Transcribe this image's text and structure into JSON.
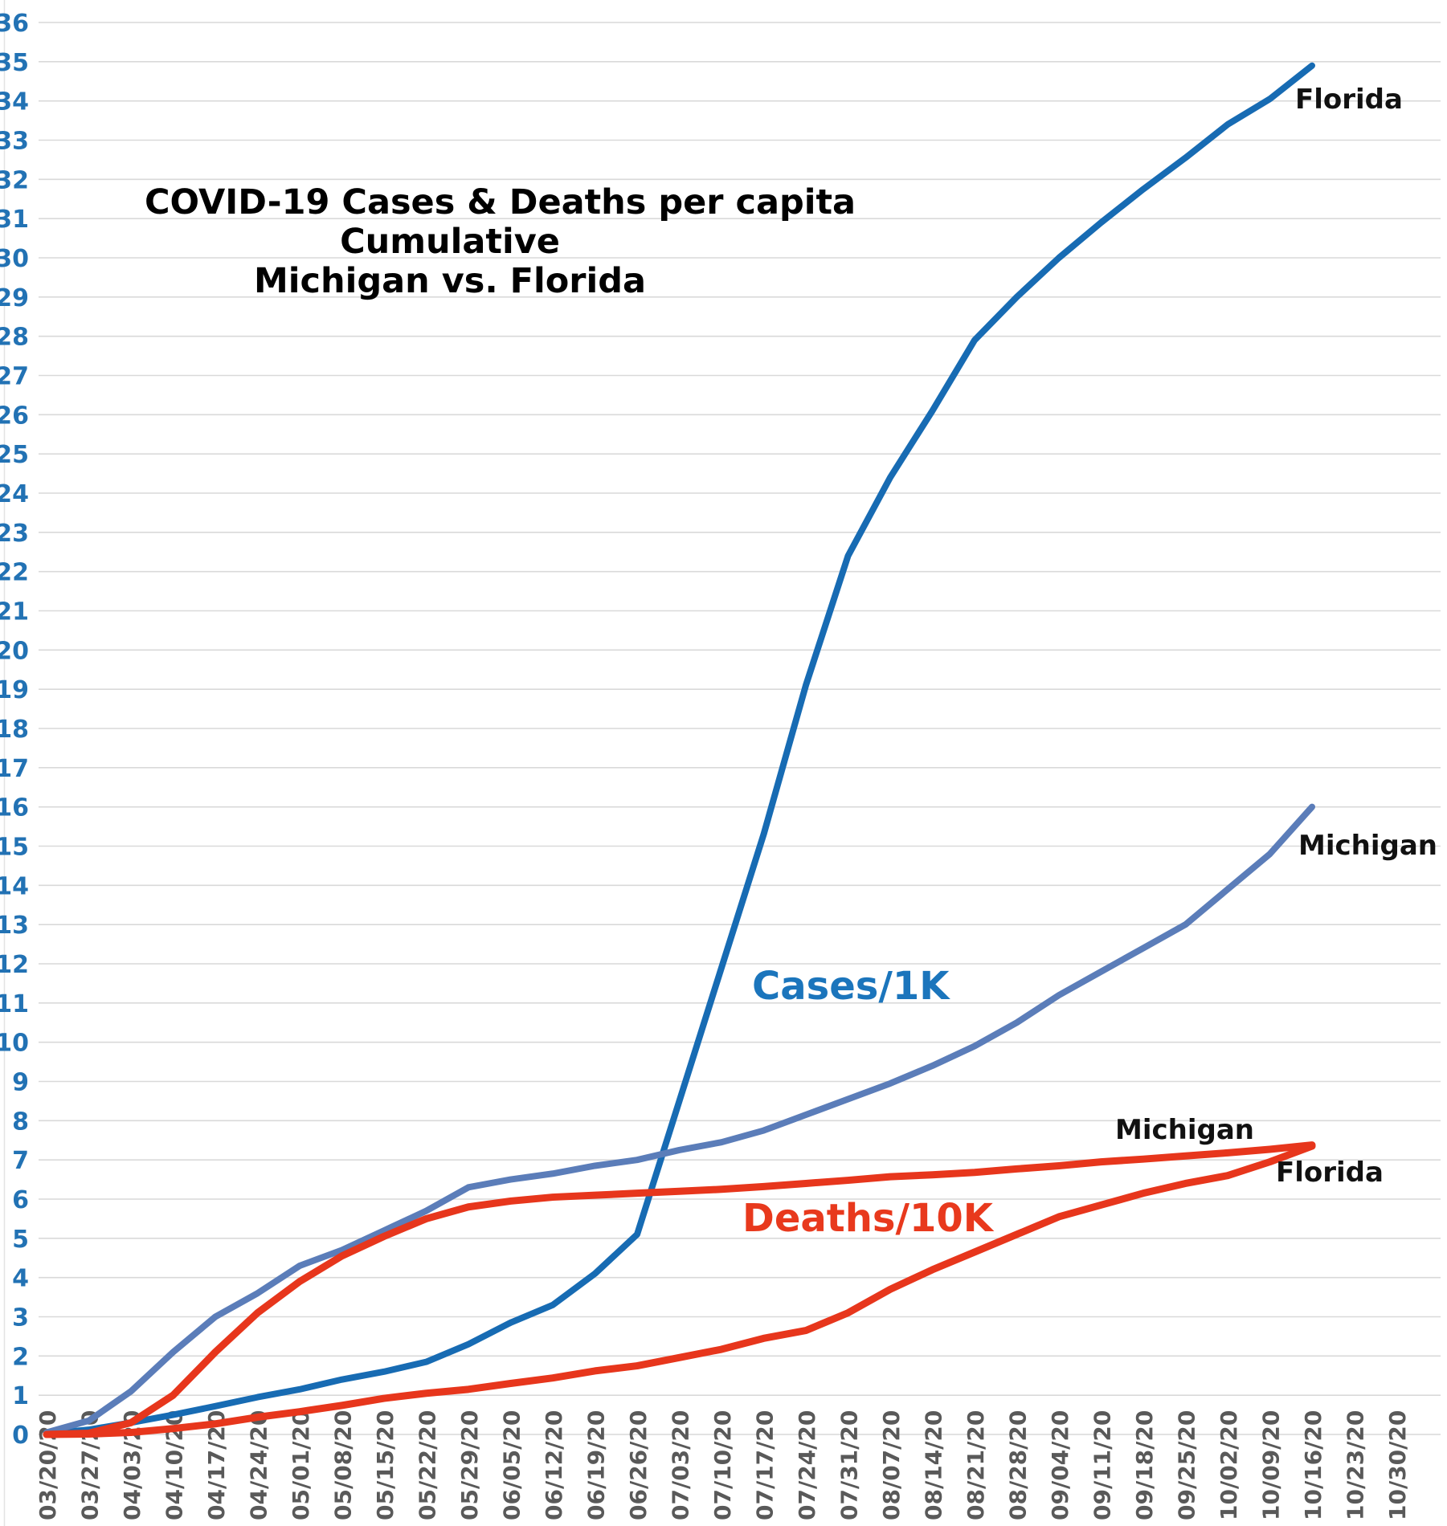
{
  "title": {
    "line1": "COVID-19 Cases & Deaths per capita",
    "line2": "Cumulative",
    "line3": "Michigan vs. Florida"
  },
  "legend": {
    "cases_label": "Cases/1K",
    "deaths_label": "Deaths/10K"
  },
  "series_end_labels": {
    "florida_cases": "Florida",
    "michigan_cases": "Michigan",
    "michigan_deaths": "Michigan",
    "florida_deaths": "Florida"
  },
  "colors": {
    "florida_cases_line": "#176BB3",
    "michigan_cases_line": "#5B7DB9",
    "deaths_line": "#E7361C",
    "cases_legend_text": "#1B75BC",
    "deaths_legend_text": "#E8391D",
    "y_tick_text": "#2272B4",
    "x_tick_text": "#595959",
    "gridline": "#D9D9D9",
    "chart_border": "#E3E3E3"
  },
  "chart_data": {
    "type": "line",
    "title": "COVID-19 Cases & Deaths per capita Cumulative Michigan vs. Florida",
    "x": [
      "03/20/20",
      "03/27/20",
      "04/03/20",
      "04/10/20",
      "04/17/20",
      "04/24/20",
      "05/01/20",
      "05/08/20",
      "05/15/20",
      "05/22/20",
      "05/29/20",
      "06/05/20",
      "06/12/20",
      "06/19/20",
      "06/26/20",
      "07/03/20",
      "07/10/20",
      "07/17/20",
      "07/24/20",
      "07/31/20",
      "08/07/20",
      "08/14/20",
      "08/21/20",
      "08/28/20",
      "09/04/20",
      "09/11/20",
      "09/18/20",
      "09/25/20",
      "10/02/20",
      "10/09/20",
      "10/16/20",
      "10/23/20",
      "10/30/20"
    ],
    "ylim": [
      0,
      36
    ],
    "ytick_step": 1,
    "grid": true,
    "x_tick_rotation_deg": 90,
    "data_ends_at": "10/16/20",
    "series": [
      {
        "name": "Florida Cases/1K",
        "state": "Florida",
        "group": "Cases/1K",
        "color": "#176BB3",
        "stroke_width": 8,
        "values": [
          0.02,
          0.12,
          0.3,
          0.5,
          0.72,
          0.95,
          1.15,
          1.4,
          1.6,
          1.85,
          2.3,
          2.85,
          3.3,
          4.1,
          5.1,
          8.5,
          11.9,
          15.3,
          19.1,
          22.4,
          24.4,
          26.1,
          27.9,
          29.0,
          30.0,
          30.9,
          31.75,
          32.55,
          33.4,
          34.05,
          34.9
        ]
      },
      {
        "name": "Michigan Cases/1K",
        "state": "Michigan",
        "group": "Cases/1K",
        "color": "#5B7DB9",
        "stroke_width": 8,
        "values": [
          0.05,
          0.35,
          1.1,
          2.1,
          3.0,
          3.6,
          4.3,
          4.7,
          5.2,
          5.7,
          6.3,
          6.5,
          6.65,
          6.85,
          7.0,
          7.25,
          7.45,
          7.75,
          8.15,
          8.55,
          8.95,
          9.4,
          9.9,
          10.5,
          11.2,
          11.8,
          12.4,
          13.0,
          13.9,
          14.8,
          16.0
        ]
      },
      {
        "name": "Michigan Deaths/10K",
        "state": "Michigan",
        "group": "Deaths/10K",
        "color": "#E7361C",
        "stroke_width": 9,
        "values": [
          0.0,
          0.03,
          0.3,
          1.0,
          2.1,
          3.1,
          3.9,
          4.55,
          5.05,
          5.5,
          5.8,
          5.95,
          6.05,
          6.1,
          6.15,
          6.2,
          6.25,
          6.32,
          6.4,
          6.48,
          6.57,
          6.62,
          6.68,
          6.77,
          6.85,
          6.95,
          7.02,
          7.1,
          7.18,
          7.27,
          7.38
        ]
      },
      {
        "name": "Florida Deaths/10K",
        "state": "Florida",
        "group": "Deaths/10K",
        "color": "#E7361C",
        "stroke_width": 9,
        "values": [
          0.0,
          0.01,
          0.05,
          0.15,
          0.27,
          0.44,
          0.58,
          0.74,
          0.92,
          1.05,
          1.15,
          1.3,
          1.44,
          1.62,
          1.75,
          1.96,
          2.17,
          2.45,
          2.65,
          3.1,
          3.7,
          4.2,
          4.65,
          5.1,
          5.55,
          5.85,
          6.15,
          6.4,
          6.6,
          6.95,
          7.35
        ]
      }
    ]
  }
}
